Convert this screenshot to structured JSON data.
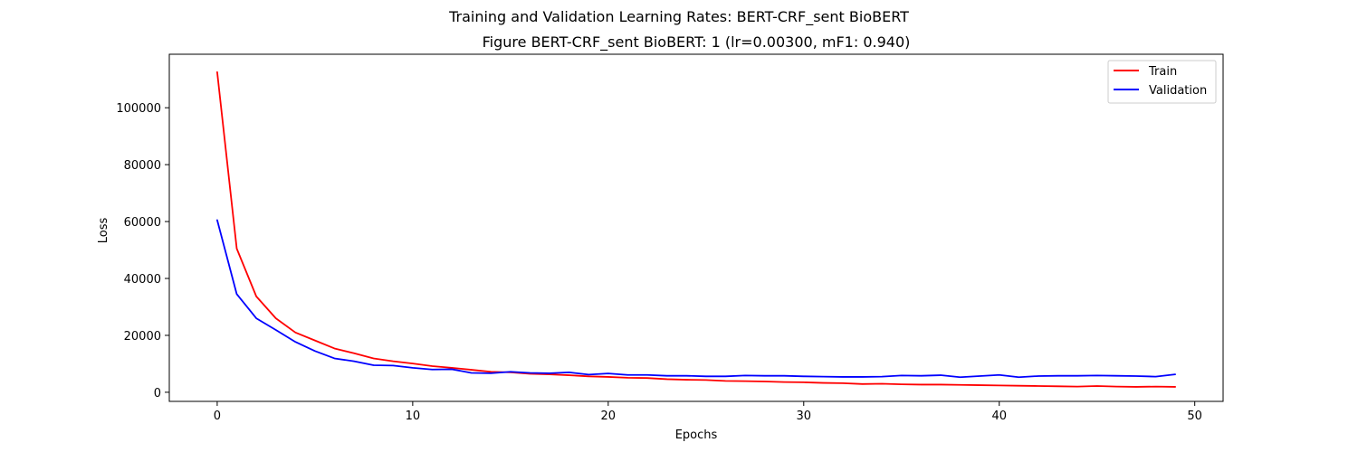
{
  "chart_data": {
    "type": "line",
    "suptitle": "Training and Validation Learning Rates: BERT-CRF_sent BioBERT",
    "title": "Figure BERT-CRF_sent BioBERT: 1 (lr=0.00300, mF1: 0.940)",
    "xlabel": "Epochs",
    "ylabel": "Loss",
    "xlim": [
      -2.45,
      51.45
    ],
    "ylim": [
      -3200,
      118800
    ],
    "xticks": [
      0,
      10,
      20,
      30,
      40,
      50
    ],
    "xtick_labels": [
      "0",
      "10",
      "20",
      "30",
      "40",
      "50"
    ],
    "yticks": [
      0,
      20000,
      40000,
      60000,
      80000,
      100000
    ],
    "ytick_labels": [
      "0",
      "20000",
      "40000",
      "60000",
      "80000",
      "100000"
    ],
    "legend_position": "upper-right",
    "x": [
      0,
      1,
      2,
      3,
      4,
      5,
      6,
      7,
      8,
      9,
      10,
      11,
      12,
      13,
      14,
      15,
      16,
      17,
      18,
      19,
      20,
      21,
      22,
      23,
      24,
      25,
      26,
      27,
      28,
      29,
      30,
      31,
      32,
      33,
      34,
      35,
      36,
      37,
      38,
      39,
      40,
      41,
      42,
      43,
      44,
      45,
      46,
      47,
      48,
      49
    ],
    "series": [
      {
        "name": "Train",
        "color": "#ff0000",
        "values": [
          112500,
          50500,
          33700,
          26000,
          21000,
          18200,
          15400,
          13700,
          11900,
          10900,
          10100,
          9200,
          8600,
          7900,
          7200,
          7000,
          6500,
          6300,
          6000,
          5600,
          5400,
          5100,
          5000,
          4600,
          4400,
          4300,
          4000,
          3900,
          3800,
          3600,
          3500,
          3300,
          3200,
          2900,
          3000,
          2800,
          2700,
          2700,
          2600,
          2500,
          2400,
          2300,
          2200,
          2100,
          2000,
          2200,
          2000,
          1900,
          2000,
          1900
        ]
      },
      {
        "name": "Validation",
        "color": "#0000ff",
        "values": [
          60500,
          34500,
          26000,
          21900,
          17700,
          14500,
          11900,
          10900,
          9500,
          9400,
          8600,
          8000,
          8100,
          6800,
          6700,
          7200,
          6800,
          6700,
          7000,
          6200,
          6600,
          6100,
          6100,
          5800,
          5800,
          5600,
          5600,
          5900,
          5800,
          5800,
          5600,
          5500,
          5400,
          5400,
          5500,
          5900,
          5800,
          6000,
          5300,
          5700,
          6100,
          5300,
          5700,
          5800,
          5800,
          5900,
          5800,
          5700,
          5500,
          6300
        ]
      }
    ]
  }
}
